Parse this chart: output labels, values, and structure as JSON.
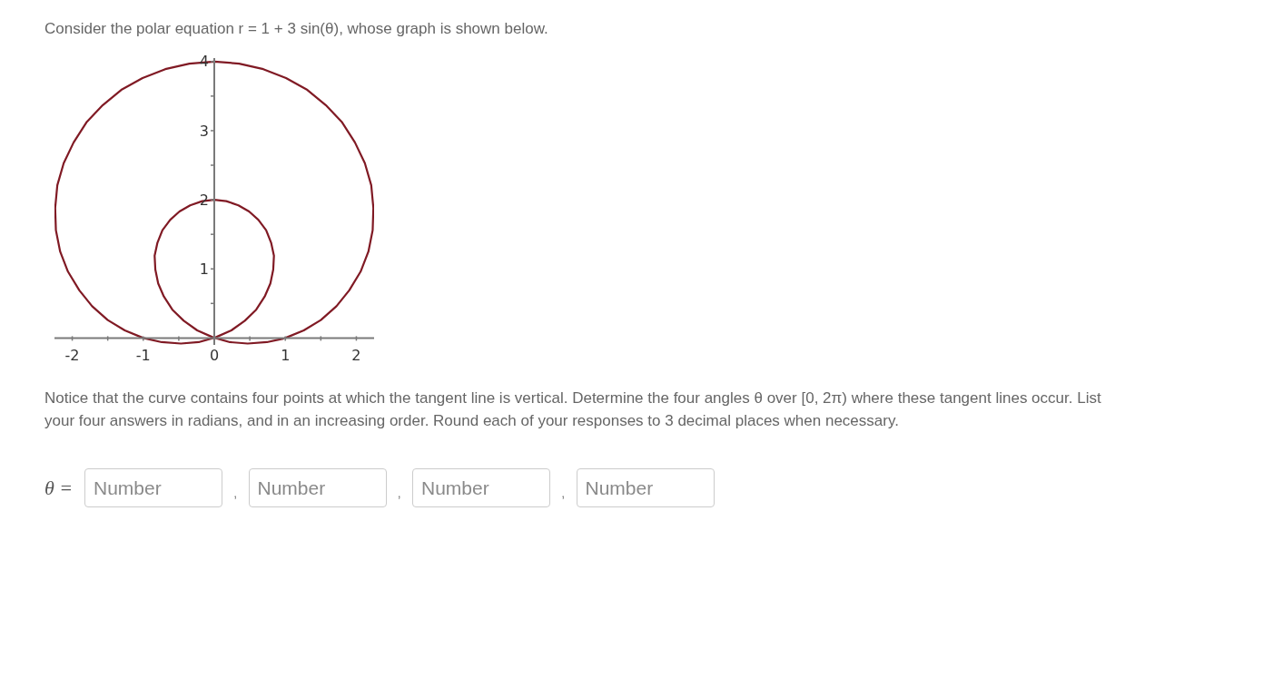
{
  "chart_data": {
    "type": "line",
    "title": "Consider the polar equation r = 1 + 3 sin(θ), whose graph is shown below.",
    "annotations": [
      "Notice that the curve contains four points at which the tangent line is vertical. Determine the four angles θ over [0, 2π) where these tangent lines occur. List your four answers in radians, and in an increasing order. Round each of your responses to 3 decimal places when necessary.",
      "θ =",
      "Number",
      ",",
      "Number",
      ",",
      "Number",
      ",",
      "Number"
    ],
    "x": [
      1,
      1.26,
      1.5,
      1.72,
      1.9,
      2.06,
      2.17,
      2.23,
      2.24,
      2.21,
      2.12,
      1.98,
      1.8,
      1.57,
      1.31,
      1.01,
      0.69,
      0.35,
      0,
      -0.35,
      -0.69,
      -1.01,
      -1.31,
      -1.57,
      -1.8,
      -1.98,
      -2.12,
      -2.21,
      -2.24,
      -2.23,
      -2.17,
      -2.06,
      -1.9,
      -1.72,
      -1.5,
      -1.26,
      -1,
      -0.74,
      -0.47,
      -0.22,
      0.02,
      0.24,
      0.43,
      0.59,
      0.71,
      0.79,
      0.83,
      0.84,
      0.8,
      0.73,
      0.62,
      0.49,
      0.34,
      0.17,
      0,
      -0.17,
      -0.34,
      -0.49,
      -0.62,
      -0.73,
      -0.8,
      -0.84,
      -0.83,
      -0.79,
      -0.71,
      -0.59,
      -0.43,
      -0.24,
      -0.02,
      0.22,
      0.47,
      0.74,
      0.97
    ],
    "values": [
      0,
      0.11,
      0.26,
      0.46,
      0.69,
      0.96,
      1.25,
      1.56,
      1.88,
      2.21,
      2.53,
      2.83,
      3.12,
      3.37,
      3.59,
      3.76,
      3.89,
      3.97,
      4,
      3.97,
      3.89,
      3.76,
      3.59,
      3.37,
      3.12,
      2.83,
      2.53,
      2.21,
      1.88,
      1.56,
      1.25,
      0.96,
      0.69,
      0.46,
      0.26,
      0.11,
      0,
      -0.06,
      -0.08,
      -0.06,
      0.01,
      0.11,
      0.25,
      0.41,
      0.6,
      0.79,
      0.99,
      1.19,
      1.38,
      1.56,
      1.71,
      1.83,
      1.92,
      1.98,
      2,
      1.98,
      1.92,
      1.83,
      1.71,
      1.56,
      1.38,
      1.19,
      0.99,
      0.79,
      0.6,
      0.41,
      0.25,
      0.11,
      0.01,
      -0.06,
      -0.08,
      -0.06,
      -0.01
    ],
    "color": "#801a24",
    "xlim": [
      -2.25,
      2.25
    ],
    "ylim": [
      -0.1,
      4.05
    ],
    "xticks": [
      -2,
      {
        "value": -1.5,
        "label": null
      },
      -1,
      {
        "value": -0.5,
        "label": null
      },
      0,
      {
        "value": 0.5,
        "label": null
      },
      1,
      {
        "value": 1.5,
        "label": null
      },
      2
    ],
    "yticks": [
      {
        "value": 0.5,
        "label": null
      },
      1,
      {
        "value": 1.5,
        "label": null
      },
      2,
      {
        "value": 2.5,
        "label": null
      },
      3,
      {
        "value": 3.5,
        "label": null
      },
      4
    ]
  }
}
